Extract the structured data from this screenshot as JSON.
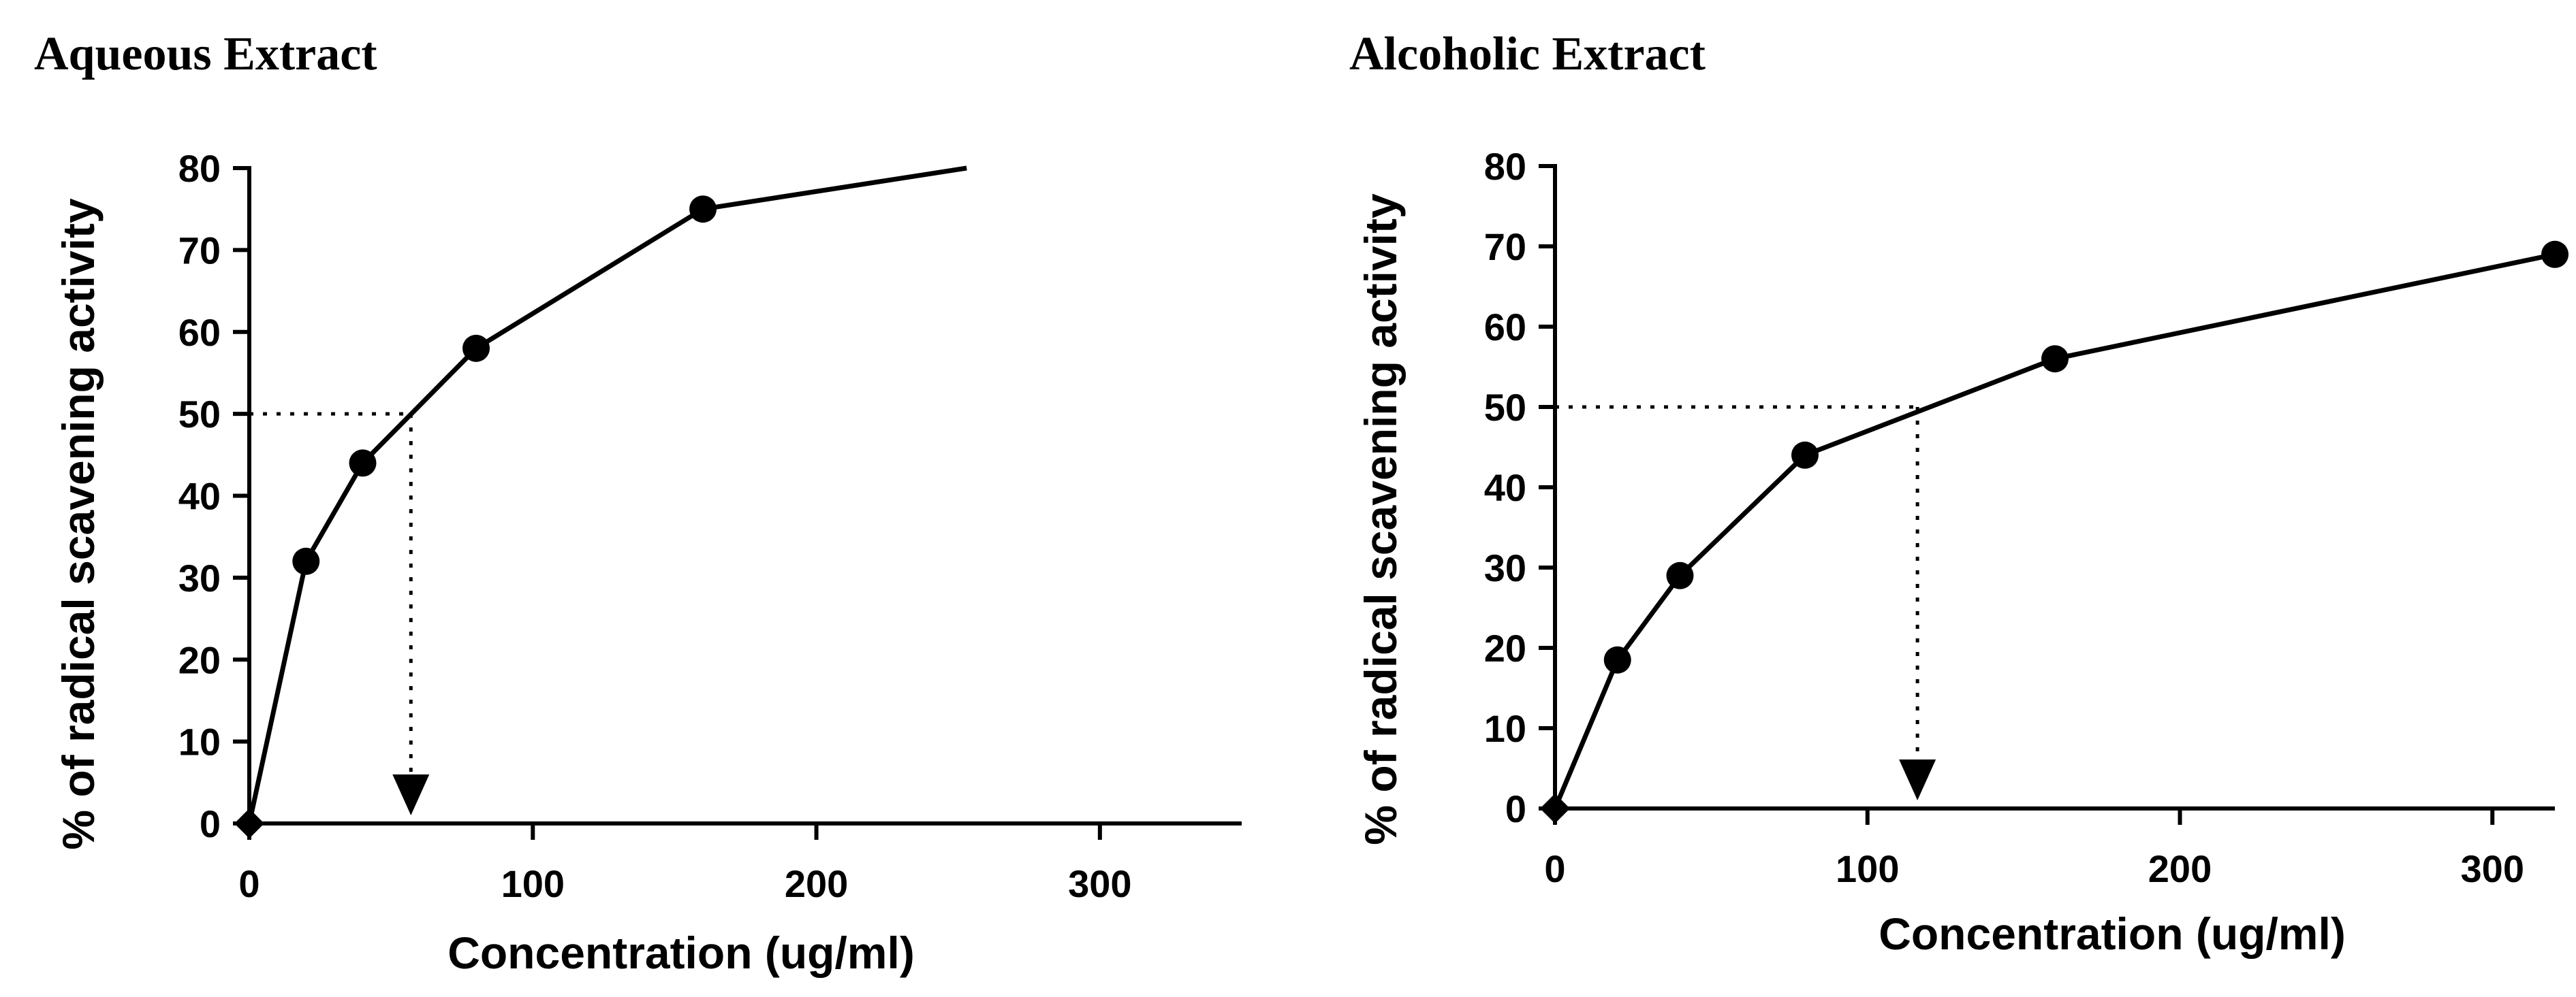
{
  "chart_data": [
    {
      "type": "line",
      "title": "Aqueous Extract",
      "xlabel": "Concentration (ug/ml)",
      "ylabel": "% of radical scavening activity",
      "xlim": [
        0,
        350
      ],
      "ylim": [
        0,
        80
      ],
      "x_ticks": [
        0,
        100,
        200,
        300
      ],
      "y_ticks": [
        0,
        10,
        20,
        30,
        40,
        50,
        60,
        70,
        80
      ],
      "grid": false,
      "series": [
        {
          "name": "Aqueous Extract",
          "x": [
            0,
            20,
            40,
            80,
            160,
            253
          ],
          "y": [
            0,
            32,
            44,
            58,
            75,
            80
          ],
          "markers": [
            true,
            true,
            true,
            true,
            true,
            false
          ],
          "first_marker_shape": "diamond"
        }
      ],
      "ic50_guide": {
        "x": 57,
        "y": 50
      }
    },
    {
      "type": "line",
      "title": "Alcoholic Extract",
      "xlabel": "Concentration (ug/ml)",
      "ylabel": "% of radical scavening activity",
      "xlim": [
        0,
        320
      ],
      "ylim": [
        0,
        80
      ],
      "x_ticks": [
        0,
        100,
        200,
        300
      ],
      "y_ticks": [
        0,
        10,
        20,
        30,
        40,
        50,
        60,
        70,
        80
      ],
      "grid": false,
      "series": [
        {
          "name": "Alcoholic Extract",
          "x": [
            0,
            20,
            40,
            80,
            160,
            320
          ],
          "y": [
            0,
            18.5,
            29,
            44,
            56,
            69
          ],
          "markers": [
            true,
            true,
            true,
            true,
            true,
            true
          ],
          "first_marker_shape": "diamond"
        }
      ],
      "ic50_guide": {
        "x": 116,
        "y": 50
      }
    }
  ]
}
